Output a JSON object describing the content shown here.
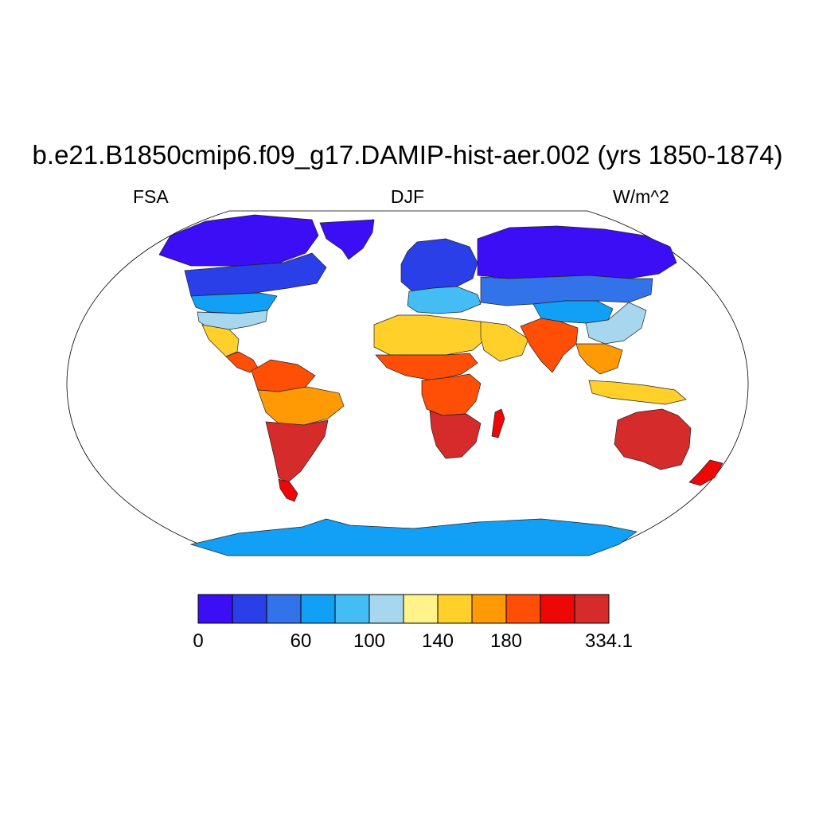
{
  "figure": {
    "title": "b.e21.B1850cmip6.f09_g17.DAMIP-hist-aer.002 (yrs 1850-1874)",
    "left_label": "FSA",
    "center_label": "DJF",
    "right_label": "W/m^2"
  },
  "map": {
    "projection": "Robinson",
    "ocean_color": "#ffffff",
    "regions": [
      {
        "name": "Greenland",
        "level": 0
      },
      {
        "name": "Arctic Canada",
        "level": 0
      },
      {
        "name": "Canada",
        "level": 1
      },
      {
        "name": "Northern United States",
        "level": 3
      },
      {
        "name": "Southern United States",
        "level": 5
      },
      {
        "name": "Mexico",
        "level": 7
      },
      {
        "name": "Central America",
        "level": 9
      },
      {
        "name": "Northern South America",
        "level": 9
      },
      {
        "name": "Amazon",
        "level": 8
      },
      {
        "name": "Southern South America",
        "level": 11
      },
      {
        "name": "Patagonia",
        "level": 10
      },
      {
        "name": "Northern Europe",
        "level": 1
      },
      {
        "name": "Southern Europe",
        "level": 4
      },
      {
        "name": "Sahara",
        "level": 7
      },
      {
        "name": "Sahel",
        "level": 9
      },
      {
        "name": "Central Africa",
        "level": 9
      },
      {
        "name": "Southern Africa",
        "level": 11
      },
      {
        "name": "Madagascar",
        "level": 10
      },
      {
        "name": "Arabia",
        "level": 7
      },
      {
        "name": "Siberia",
        "level": 0
      },
      {
        "name": "Central Asia",
        "level": 2
      },
      {
        "name": "Tibet",
        "level": 3
      },
      {
        "name": "China",
        "level": 5
      },
      {
        "name": "India",
        "level": 9
      },
      {
        "name": "Southeast Asia",
        "level": 8
      },
      {
        "name": "Indonesia",
        "level": 7
      },
      {
        "name": "Australia",
        "level": 11
      },
      {
        "name": "New Zealand",
        "level": 10
      },
      {
        "name": "Antarctica",
        "level": 3
      }
    ]
  },
  "colorbar": {
    "colors": [
      "#3b0ef5",
      "#2a3fe8",
      "#3373e9",
      "#12a0f7",
      "#44bdf5",
      "#a7d7ee",
      "#fff38a",
      "#ffcf2a",
      "#ff9a05",
      "#ff4e05",
      "#ee0707",
      "#d62b2b"
    ],
    "labels": [
      {
        "text": "0",
        "boundary": 0
      },
      {
        "text": "60",
        "boundary": 3
      },
      {
        "text": "100",
        "boundary": 5
      },
      {
        "text": "140",
        "boundary": 7
      },
      {
        "text": "180",
        "boundary": 9
      },
      {
        "text": "334.1",
        "boundary": 12
      }
    ]
  }
}
